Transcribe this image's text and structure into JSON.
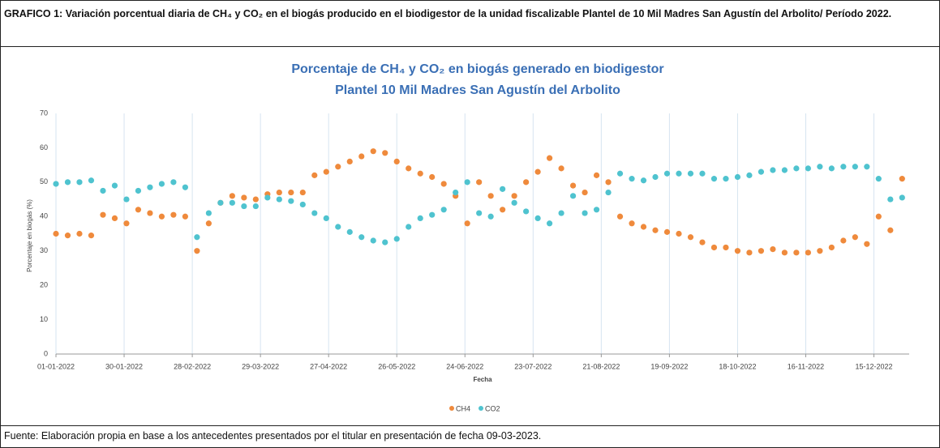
{
  "header": {
    "caption": "GRAFICO  1: Variación porcentual diaria de CH₄ y CO₂ en el biogás producido en el biodigestor de la unidad fiscalizable Plantel de 10 Mil Madres San Agustín del Arbolito/ Período 2022."
  },
  "chart_data": {
    "type": "scatter",
    "title": [
      "Porcentaje de CH₄ y CO₂ en biogás generado en biodigestor",
      "Plantel 10 Mil Madres San Agustín del Arbolito"
    ],
    "x_label": "Fecha",
    "y_label": "Porcentaje en biogás  (%)",
    "x": [
      "01-01-2022",
      "06-01-2022",
      "11-01-2022",
      "16-01-2022",
      "21-01-2022",
      "26-01-2022",
      "31-01-2022",
      "05-02-2022",
      "10-02-2022",
      "15-02-2022",
      "20-02-2022",
      "25-02-2022",
      "02-03-2022",
      "07-03-2022",
      "12-03-2022",
      "17-03-2022",
      "22-03-2022",
      "27-03-2022",
      "01-04-2022",
      "06-04-2022",
      "11-04-2022",
      "16-04-2022",
      "21-04-2022",
      "26-04-2022",
      "01-05-2022",
      "06-05-2022",
      "11-05-2022",
      "16-05-2022",
      "21-05-2022",
      "26-05-2022",
      "31-05-2022",
      "05-06-2022",
      "10-06-2022",
      "15-06-2022",
      "20-06-2022",
      "25-06-2022",
      "30-06-2022",
      "05-07-2022",
      "10-07-2022",
      "15-07-2022",
      "20-07-2022",
      "25-07-2022",
      "30-07-2022",
      "04-08-2022",
      "09-08-2022",
      "14-08-2022",
      "19-08-2022",
      "24-08-2022",
      "29-08-2022",
      "03-09-2022",
      "08-09-2022",
      "13-09-2022",
      "18-09-2022",
      "23-09-2022",
      "28-09-2022",
      "03-10-2022",
      "08-10-2022",
      "13-10-2022",
      "18-10-2022",
      "23-10-2022",
      "28-10-2022",
      "02-11-2022",
      "07-11-2022",
      "12-11-2022",
      "17-11-2022",
      "22-11-2022",
      "27-11-2022",
      "02-12-2022",
      "07-12-2022",
      "12-12-2022",
      "17-12-2022",
      "22-12-2022",
      "27-12-2022"
    ],
    "series": [
      {
        "name": "CH4",
        "color": "#ef8a3c",
        "values": [
          35,
          34.5,
          35,
          34.5,
          40.5,
          39.5,
          38,
          42,
          41,
          40,
          40.5,
          40,
          30,
          38,
          44,
          46,
          45.5,
          45,
          46.5,
          47,
          47,
          47,
          52,
          53,
          54.5,
          56,
          57.5,
          59,
          58.5,
          56,
          54,
          52.5,
          51.5,
          49.5,
          46,
          38,
          50,
          46,
          42,
          46,
          50,
          53,
          57,
          54,
          49,
          47,
          52,
          50,
          40,
          38,
          37,
          36,
          35.5,
          35,
          34,
          32.5,
          31,
          31,
          30,
          29.5,
          30,
          30.5,
          29.5,
          29.5,
          29.5,
          30,
          31,
          33,
          34,
          32,
          40,
          36,
          51
        ]
      },
      {
        "name": "CO2",
        "color": "#4fc3cf",
        "values": [
          49.5,
          50,
          50,
          50.5,
          47.5,
          49,
          45,
          47.5,
          48.5,
          49.5,
          50,
          48.5,
          34,
          41,
          44,
          44,
          43,
          43,
          45.5,
          45,
          44.5,
          43.5,
          41,
          39.5,
          37,
          35.5,
          34,
          33,
          32.5,
          33.5,
          37,
          39.5,
          40.5,
          42,
          47,
          50,
          41,
          40,
          48,
          44,
          41.5,
          39.5,
          38,
          41,
          46,
          41,
          42,
          47,
          52.5,
          51,
          50.5,
          51.5,
          52.5,
          52.5,
          52.5,
          52.5,
          51,
          51,
          51.5,
          52,
          53,
          53.5,
          53.5,
          54,
          54,
          54.5,
          54,
          54.5,
          54.5,
          54.5,
          51,
          45,
          45.5
        ]
      }
    ],
    "xlim": [
      "01-01-2022",
      "30-12-2022"
    ],
    "xticks": [
      "01-01-2022",
      "30-01-2022",
      "28-02-2022",
      "29-03-2022",
      "27-04-2022",
      "26-05-2022",
      "24-06-2022",
      "23-07-2022",
      "21-08-2022",
      "19-09-2022",
      "18-10-2022",
      "16-11-2022",
      "15-12-2022"
    ],
    "ylim": [
      0,
      70
    ],
    "yticks": [
      0,
      10,
      20,
      30,
      40,
      50,
      60,
      70
    ],
    "grid": "x",
    "legend": "bottom"
  },
  "footer": {
    "source": "Fuente: Elaboración propia en base a los antecedentes presentados por el titular en presentación de fecha 09-03-2023."
  }
}
